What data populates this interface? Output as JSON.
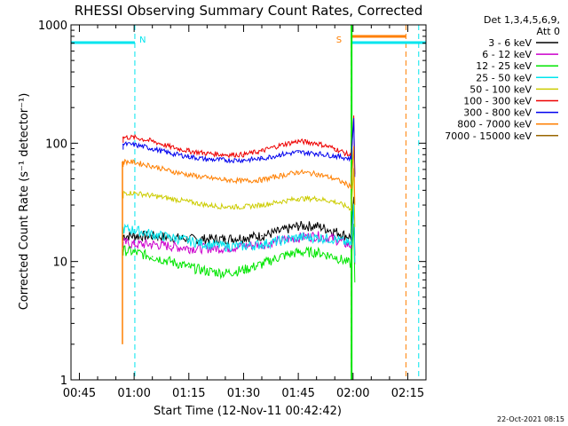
{
  "chart_data": {
    "type": "line",
    "title": "RHESSI Observing Summary Count Rates, Corrected",
    "xlabel": "Start Time (12-Nov-11 00:42:42)",
    "ylabel": "Corrected Count Rate (s⁻¹ detector⁻¹)",
    "xlim_minutes_after_0040": [
      2.7,
      100.0
    ],
    "ylim": [
      1,
      1000
    ],
    "yscale": "log",
    "grid": false,
    "legend_position": "top-right",
    "x_ticks": [
      {
        "label": "00:45",
        "min": 5
      },
      {
        "label": "01:00",
        "min": 20
      },
      {
        "label": "01:15",
        "min": 35
      },
      {
        "label": "01:30",
        "min": 50
      },
      {
        "label": "01:45",
        "min": 65
      },
      {
        "label": "02:00",
        "min": 80
      },
      {
        "label": "02:15",
        "min": 95
      }
    ],
    "y_ticks": [
      {
        "label": "1",
        "value": 1
      },
      {
        "label": "10",
        "value": 10
      },
      {
        "label": "100",
        "value": 100
      },
      {
        "label": "1000",
        "value": 1000
      }
    ],
    "legend_header": [
      "Det 1,3,4,5,6,9,",
      "Att 0"
    ],
    "series": [
      {
        "name": "3 - 6 keV",
        "color": "#000000",
        "x": [
          17,
          20,
          25,
          30,
          35,
          40,
          45,
          50,
          55,
          60,
          65,
          70,
          75,
          79.5
        ],
        "y": [
          16.5,
          16.5,
          16.5,
          16,
          15.5,
          15.5,
          15.5,
          16,
          16.5,
          18,
          20,
          20,
          18,
          16
        ]
      },
      {
        "name": "6 - 12 keV",
        "color": "#cc00cc",
        "x": [
          17,
          20,
          25,
          30,
          35,
          40,
          45,
          50,
          55,
          60,
          65,
          70,
          75,
          79.5
        ],
        "y": [
          14.5,
          14,
          14,
          13.5,
          13,
          13,
          13,
          13.5,
          14,
          15,
          16,
          16.5,
          15.5,
          13.5
        ]
      },
      {
        "name": "12 - 25 keV",
        "color": "#00e600",
        "x": [
          17,
          20,
          25,
          30,
          35,
          40,
          45,
          50,
          55,
          60,
          65,
          70,
          75,
          79.5
        ],
        "y": [
          12.5,
          12,
          11,
          10,
          9,
          8.3,
          8,
          8.5,
          9.5,
          11,
          12,
          12,
          11,
          9.5
        ]
      },
      {
        "name": "25 - 50 keV",
        "color": "#00e5ee",
        "x": [
          17,
          20,
          25,
          30,
          35,
          40,
          45,
          50,
          55,
          60,
          65,
          70,
          75,
          79.5
        ],
        "y": [
          19,
          18.5,
          17,
          16,
          15,
          14,
          13.5,
          13.5,
          14,
          15,
          16,
          16,
          15.5,
          14
        ]
      },
      {
        "name": "50 - 100 keV",
        "color": "#cccc00",
        "x": [
          17,
          20,
          25,
          30,
          35,
          40,
          45,
          50,
          55,
          60,
          65,
          70,
          75,
          79.5
        ],
        "y": [
          38,
          38,
          36,
          34,
          32,
          30,
          29,
          29,
          30,
          32,
          34,
          34,
          32,
          28
        ]
      },
      {
        "name": "100 - 300 keV",
        "color": "#ee0000",
        "x": [
          17,
          20,
          25,
          30,
          35,
          40,
          45,
          50,
          55,
          60,
          65,
          70,
          75,
          79.5
        ],
        "y": [
          112,
          112,
          104,
          93,
          86,
          82,
          80,
          80,
          86,
          96,
          104,
          100,
          90,
          78
        ]
      },
      {
        "name": "300 - 800 keV",
        "color": "#0000ee",
        "x": [
          17,
          20,
          25,
          30,
          35,
          40,
          45,
          50,
          55,
          60,
          65,
          70,
          75,
          79.5
        ],
        "y": [
          98,
          97,
          90,
          82,
          77,
          73,
          72,
          72,
          74,
          80,
          84,
          82,
          78,
          74
        ]
      },
      {
        "name": "800 - 7000 keV",
        "color": "#ff7f00",
        "x": [
          17,
          20,
          25,
          30,
          35,
          40,
          45,
          50,
          55,
          60,
          65,
          70,
          75,
          79.5
        ],
        "y": [
          70,
          69,
          64,
          58,
          54,
          51,
          49,
          48,
          49,
          53,
          57,
          55,
          50,
          43
        ]
      },
      {
        "name": "7000 - 15000 keV",
        "color": "#996600",
        "x": [],
        "y": []
      }
    ],
    "annotations": [
      {
        "text": "N",
        "color": "#00e5ee",
        "min": 20.2
      },
      {
        "text": "S",
        "color": "#ff7f00",
        "min": 79.5
      }
    ]
  },
  "footer": {
    "timestamp": "22-Oct-2021 08:15"
  }
}
